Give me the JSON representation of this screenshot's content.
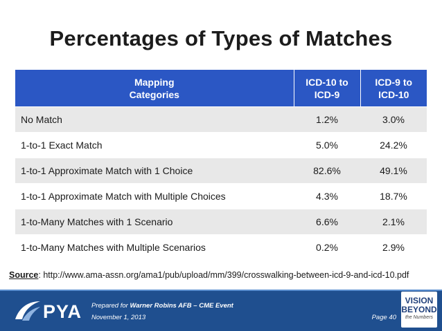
{
  "title": "Percentages of Types of Matches",
  "table": {
    "headers": [
      "Mapping\nCategories",
      "ICD-10 to\nICD-9",
      "ICD-9 to\nICD-10"
    ],
    "rows": [
      {
        "category": "No Match",
        "icd10_to_icd9": "1.2%",
        "icd9_to_icd10": "3.0%"
      },
      {
        "category": "1-to-1 Exact Match",
        "icd10_to_icd9": "5.0%",
        "icd9_to_icd10": "24.2%"
      },
      {
        "category": "1-to-1 Approximate Match with 1 Choice",
        "icd10_to_icd9": "82.6%",
        "icd9_to_icd10": "49.1%"
      },
      {
        "category": "1-to-1 Approximate Match with Multiple Choices",
        "icd10_to_icd9": "4.3%",
        "icd9_to_icd10": "18.7%"
      },
      {
        "category": "1-to-Many Matches with 1 Scenario",
        "icd10_to_icd9": "6.6%",
        "icd9_to_icd10": "2.1%"
      },
      {
        "category": "1-to-Many Matches with Multiple Scenarios",
        "icd10_to_icd9": "0.2%",
        "icd9_to_icd10": "2.9%"
      }
    ]
  },
  "source": {
    "label": "Source",
    "text": ": http://www.ama-assn.org/ama1/pub/upload/mm/399/crosswalking-between-icd-9-and-icd-10.pdf"
  },
  "footer": {
    "logo_text": "PYA",
    "prepared_prefix": "Prepared for ",
    "prepared_event": "Warner Robins AFB – CME Event",
    "date": "November 1, 2013",
    "page": "Page 40",
    "badge_line1": "VISION",
    "badge_line2": "BEYOND",
    "badge_line3": "the Numbers"
  },
  "colors": {
    "header_bg": "#2b57c4",
    "stripe_bg": "#e8e8e8",
    "footer_bg": "#1f4f8f"
  }
}
